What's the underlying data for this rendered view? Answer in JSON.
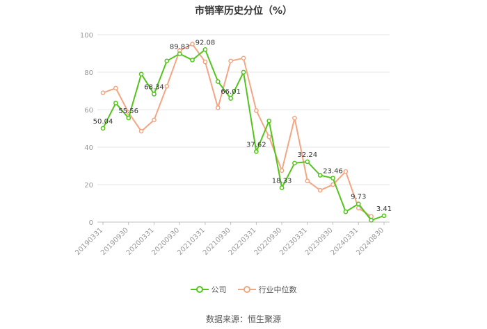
{
  "chart_data": {
    "type": "line",
    "title": "市销率历史分位（%）",
    "ylim": [
      0,
      100
    ],
    "yticks": [
      0,
      20,
      40,
      60,
      80,
      100
    ],
    "tick_labels": [
      "20190331",
      "20190930",
      "20200331",
      "20200930",
      "20210331",
      "20210930",
      "20220331",
      "20220930",
      "20230331",
      "20230930",
      "20240331",
      "20240830"
    ],
    "x": [
      "20190331",
      "20190630",
      "20190930",
      "20191231",
      "20200331",
      "20200630",
      "20200930",
      "20201231",
      "20210331",
      "20210630",
      "20210930",
      "20211231",
      "20220331",
      "20220630",
      "20220930",
      "20221231",
      "20230331",
      "20230630",
      "20230930",
      "20231231",
      "20240331",
      "20240630",
      "20240830"
    ],
    "series": [
      {
        "name": "公司",
        "color": "#52c41a",
        "values": [
          50.04,
          63.5,
          55.56,
          79,
          68.34,
          86,
          89.83,
          86.5,
          92.08,
          75,
          66.01,
          80,
          37.62,
          54,
          18.33,
          31.5,
          32.24,
          25,
          23.46,
          5.5,
          9.73,
          1,
          3.41
        ],
        "labels": {
          "0": "50.04",
          "2": "55.56",
          "4": "68.34",
          "6": "89.83",
          "8": "92.08",
          "10": "66.01",
          "12": "37.62",
          "14": "18.33",
          "16": "32.24",
          "18": "23.46",
          "20": "9.73",
          "22": "3.41"
        }
      },
      {
        "name": "行业中位数",
        "color": "#f4a582",
        "values": [
          69,
          71.5,
          58.5,
          48.5,
          54.5,
          72.5,
          91.5,
          95,
          85.5,
          61,
          86,
          87.5,
          59.5,
          45.5,
          27.5,
          55.5,
          22,
          17,
          20,
          27,
          7.5,
          3,
          null
        ]
      }
    ]
  },
  "legend": {
    "company": "公司",
    "industry": "行业中位数"
  },
  "source": "数据来源：恒生聚源"
}
